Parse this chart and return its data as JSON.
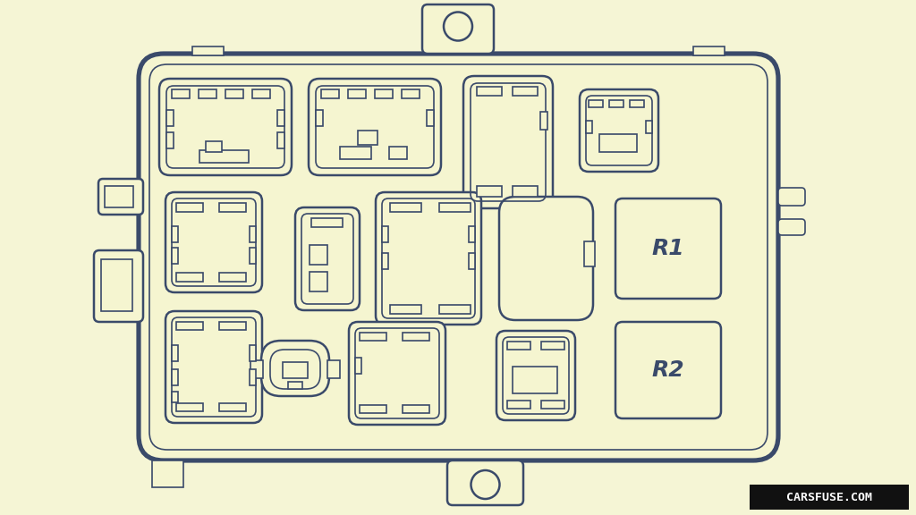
{
  "bg_color": "#f5f5d0",
  "line_color": "#3a4a6a",
  "lw_outer": 2.5,
  "lw_mid": 1.8,
  "lw_inner": 1.2,
  "watermark_text": "CARSFUSE.COM",
  "watermark_bg": "#111111",
  "watermark_fg": "#ffffff"
}
